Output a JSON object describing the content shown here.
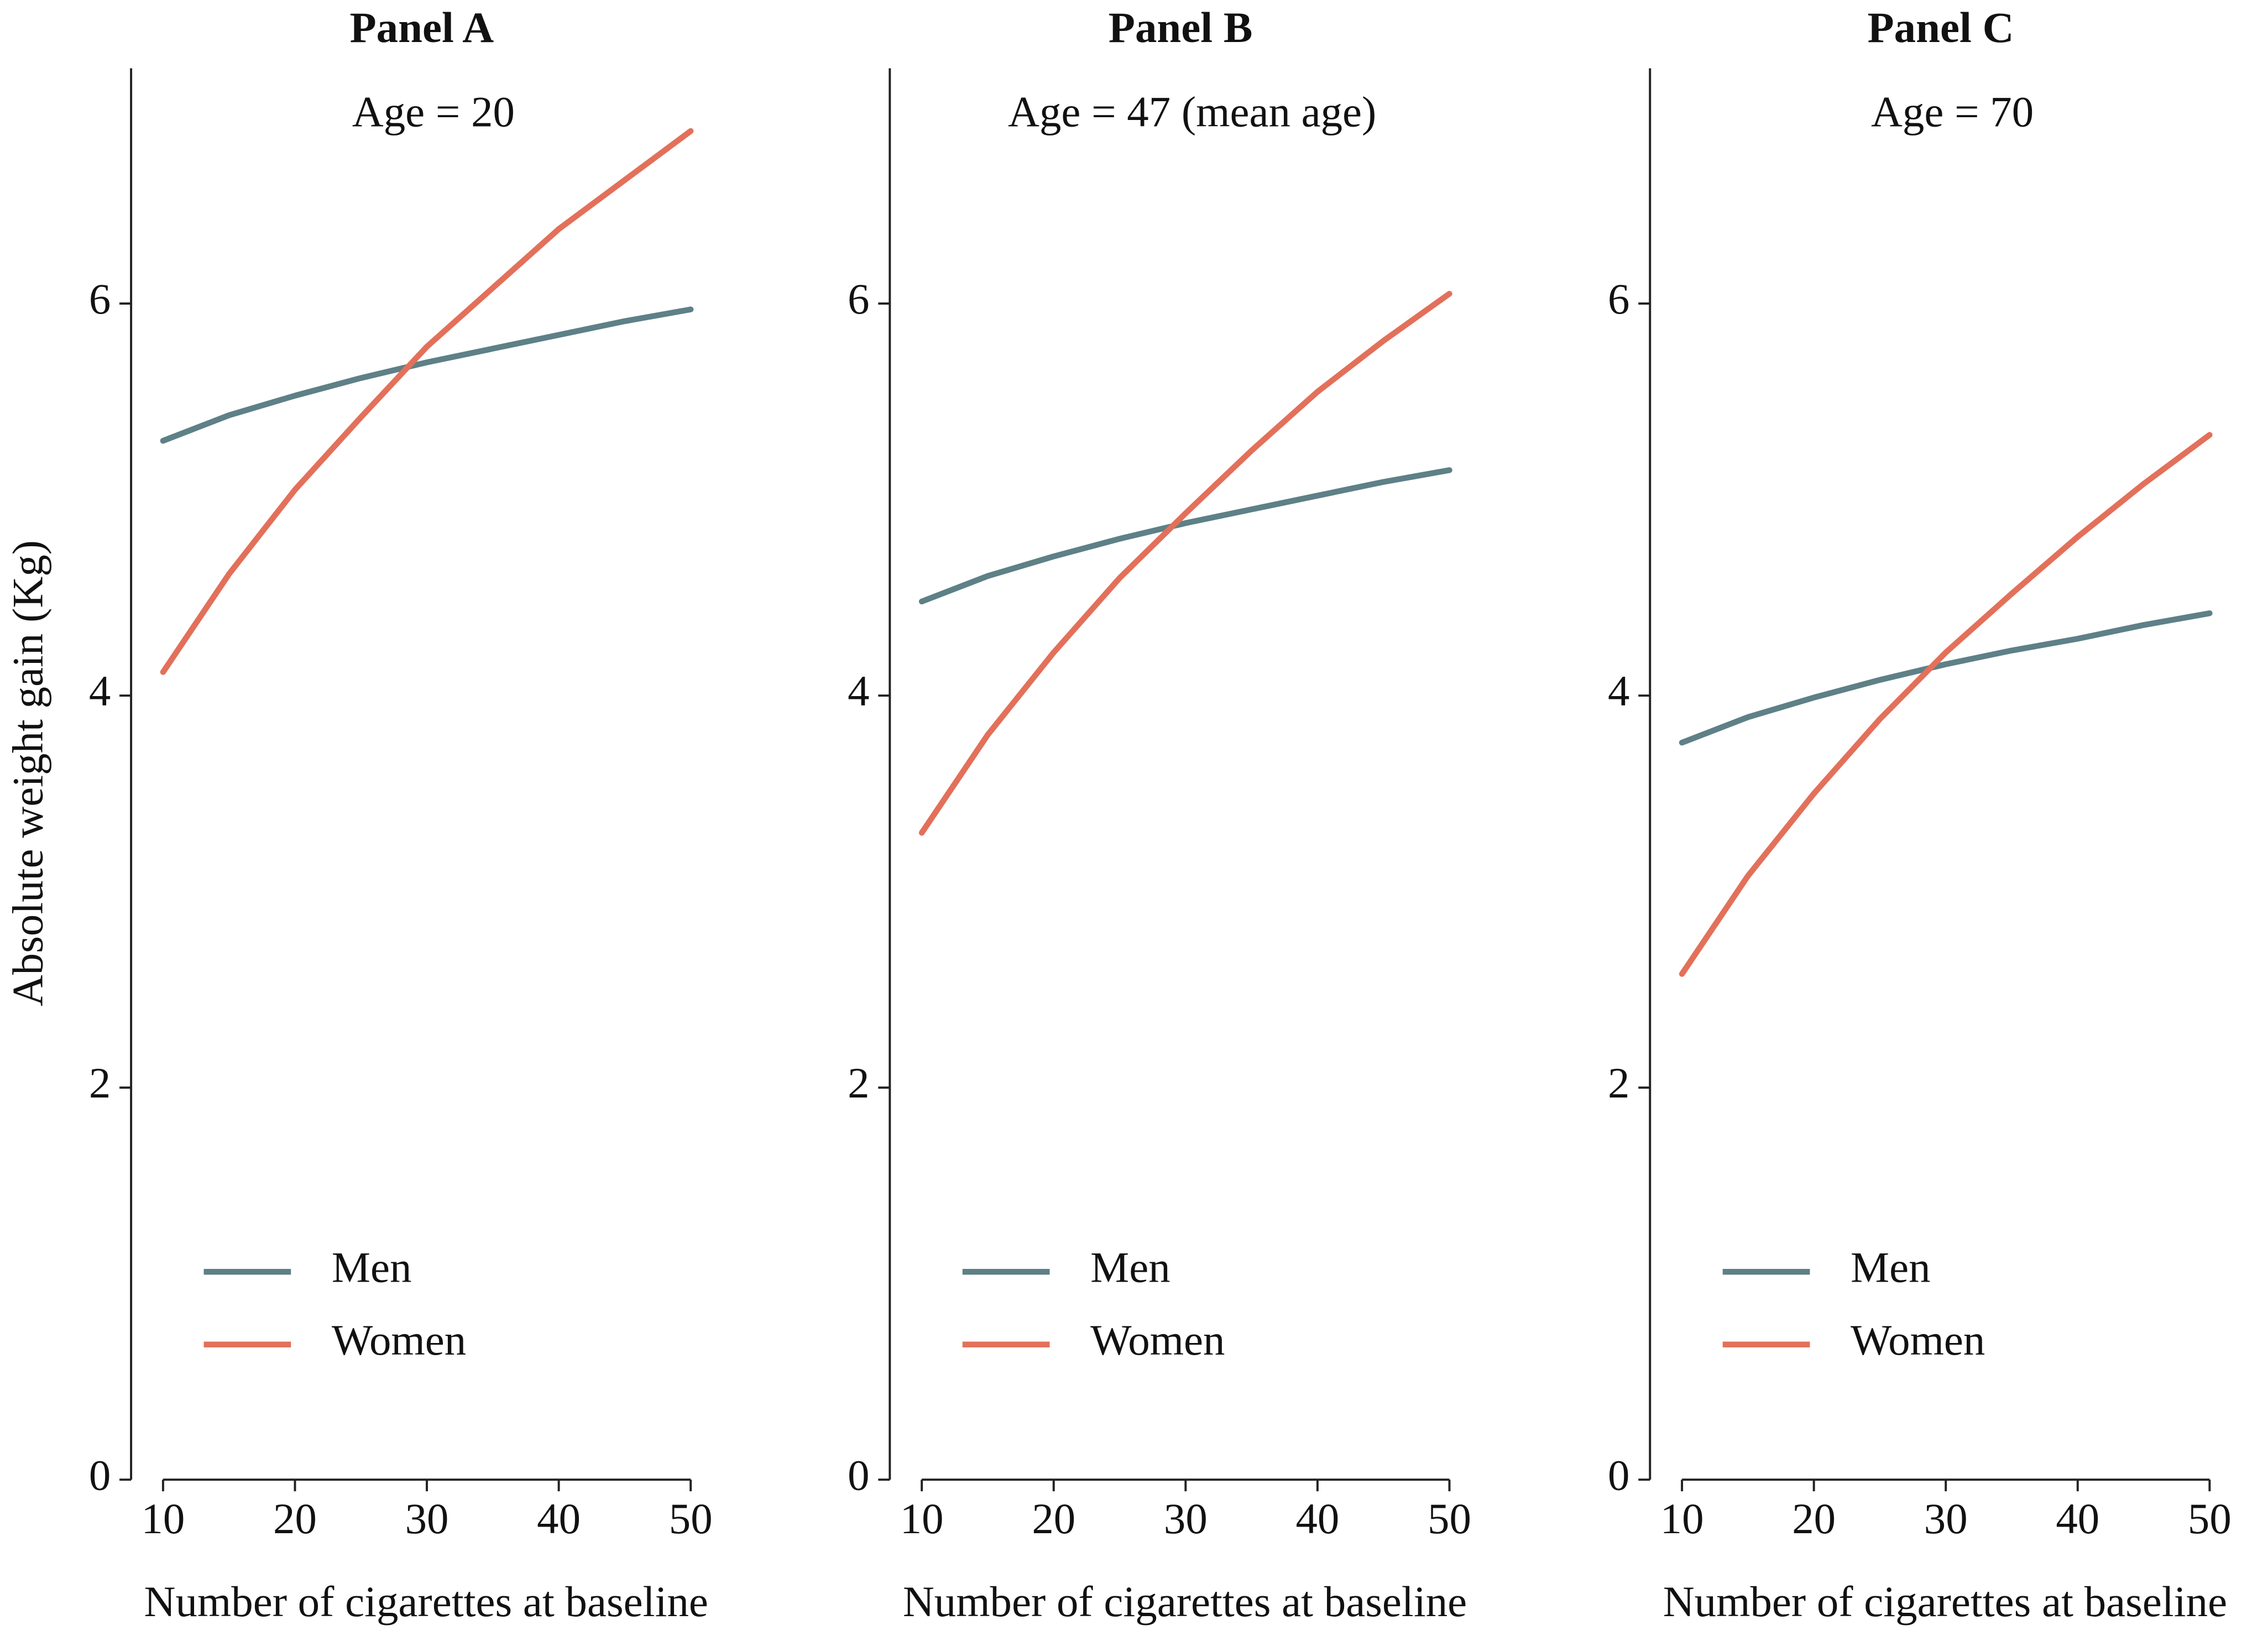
{
  "chart_data": [
    {
      "type": "line",
      "title": "Panel A",
      "subtitle": "Age = 20",
      "ylabel": "Absolute weight gain (Kg)",
      "xlabel": "Number of cigarettes at baseline",
      "x": [
        10,
        15,
        20,
        25,
        30,
        35,
        40,
        45,
        50
      ],
      "series": [
        {
          "name": "Men",
          "color": "#5e8087",
          "values": [
            5.3,
            5.43,
            5.53,
            5.62,
            5.7,
            5.77,
            5.84,
            5.91,
            5.97
          ]
        },
        {
          "name": "Women",
          "color": "#e3705a",
          "values": [
            4.12,
            4.62,
            5.05,
            5.42,
            5.78,
            6.08,
            6.38,
            6.63,
            6.88
          ]
        }
      ],
      "xlim": [
        10,
        50
      ],
      "xticks": [
        10,
        20,
        30,
        40,
        50
      ],
      "ylim": [
        0,
        7.2
      ],
      "yticks": [
        0,
        2,
        4,
        6
      ],
      "legend": "lower left"
    },
    {
      "type": "line",
      "title": "Panel B",
      "subtitle": "Age = 47 (mean age)",
      "xlabel": "Number of cigarettes at baseline",
      "x": [
        10,
        15,
        20,
        25,
        30,
        35,
        40,
        45,
        50
      ],
      "series": [
        {
          "name": "Men",
          "color": "#5e8087",
          "values": [
            4.48,
            4.61,
            4.71,
            4.8,
            4.88,
            4.95,
            5.02,
            5.09,
            5.15
          ]
        },
        {
          "name": "Women",
          "color": "#e3705a",
          "values": [
            3.3,
            3.8,
            4.22,
            4.6,
            4.93,
            5.25,
            5.55,
            5.81,
            6.05
          ]
        }
      ],
      "xlim": [
        10,
        50
      ],
      "xticks": [
        10,
        20,
        30,
        40,
        50
      ],
      "ylim": [
        0,
        7.2
      ],
      "yticks": [
        0,
        2,
        4,
        6
      ],
      "legend": "lower left"
    },
    {
      "type": "line",
      "title": "Panel C",
      "subtitle": "Age = 70",
      "xlabel": "Number of cigarettes at baseline",
      "x": [
        10,
        15,
        20,
        25,
        30,
        35,
        40,
        45,
        50
      ],
      "series": [
        {
          "name": "Men",
          "color": "#5e8087",
          "values": [
            3.76,
            3.89,
            3.99,
            4.08,
            4.16,
            4.23,
            4.29,
            4.36,
            4.42
          ]
        },
        {
          "name": "Women",
          "color": "#e3705a",
          "values": [
            2.58,
            3.08,
            3.5,
            3.88,
            4.22,
            4.52,
            4.81,
            5.08,
            5.33
          ]
        }
      ],
      "xlim": [
        10,
        50
      ],
      "xticks": [
        10,
        20,
        30,
        40,
        50
      ],
      "ylim": [
        0,
        7.2
      ],
      "yticks": [
        0,
        2,
        4,
        6
      ],
      "legend": "lower left"
    }
  ]
}
